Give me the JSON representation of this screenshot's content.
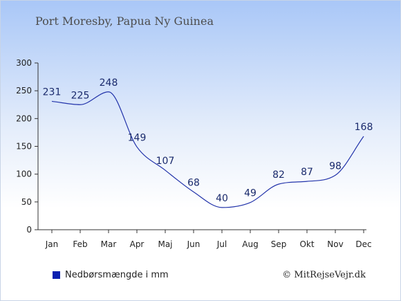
{
  "chart_data": {
    "type": "line",
    "title": "Port Moresby, Papua Ny Guinea",
    "categories": [
      "Jan",
      "Feb",
      "Mar",
      "Apr",
      "Maj",
      "Jun",
      "Jul",
      "Aug",
      "Sep",
      "Okt",
      "Nov",
      "Dec"
    ],
    "series": [
      {
        "name": "Nedbørsmængde i mm",
        "values": [
          231,
          225,
          248,
          149,
          107,
          68,
          40,
          49,
          82,
          87,
          98,
          168
        ]
      }
    ],
    "ylim": [
      0,
      300
    ],
    "yticks": [
      0,
      50,
      100,
      150,
      200,
      250,
      300
    ],
    "grid": false,
    "legend_position": "bottom-left",
    "line_color": "#2233aa",
    "legend_color": "#0a1fb0"
  },
  "credit": "© MitRejseVejr.dk"
}
